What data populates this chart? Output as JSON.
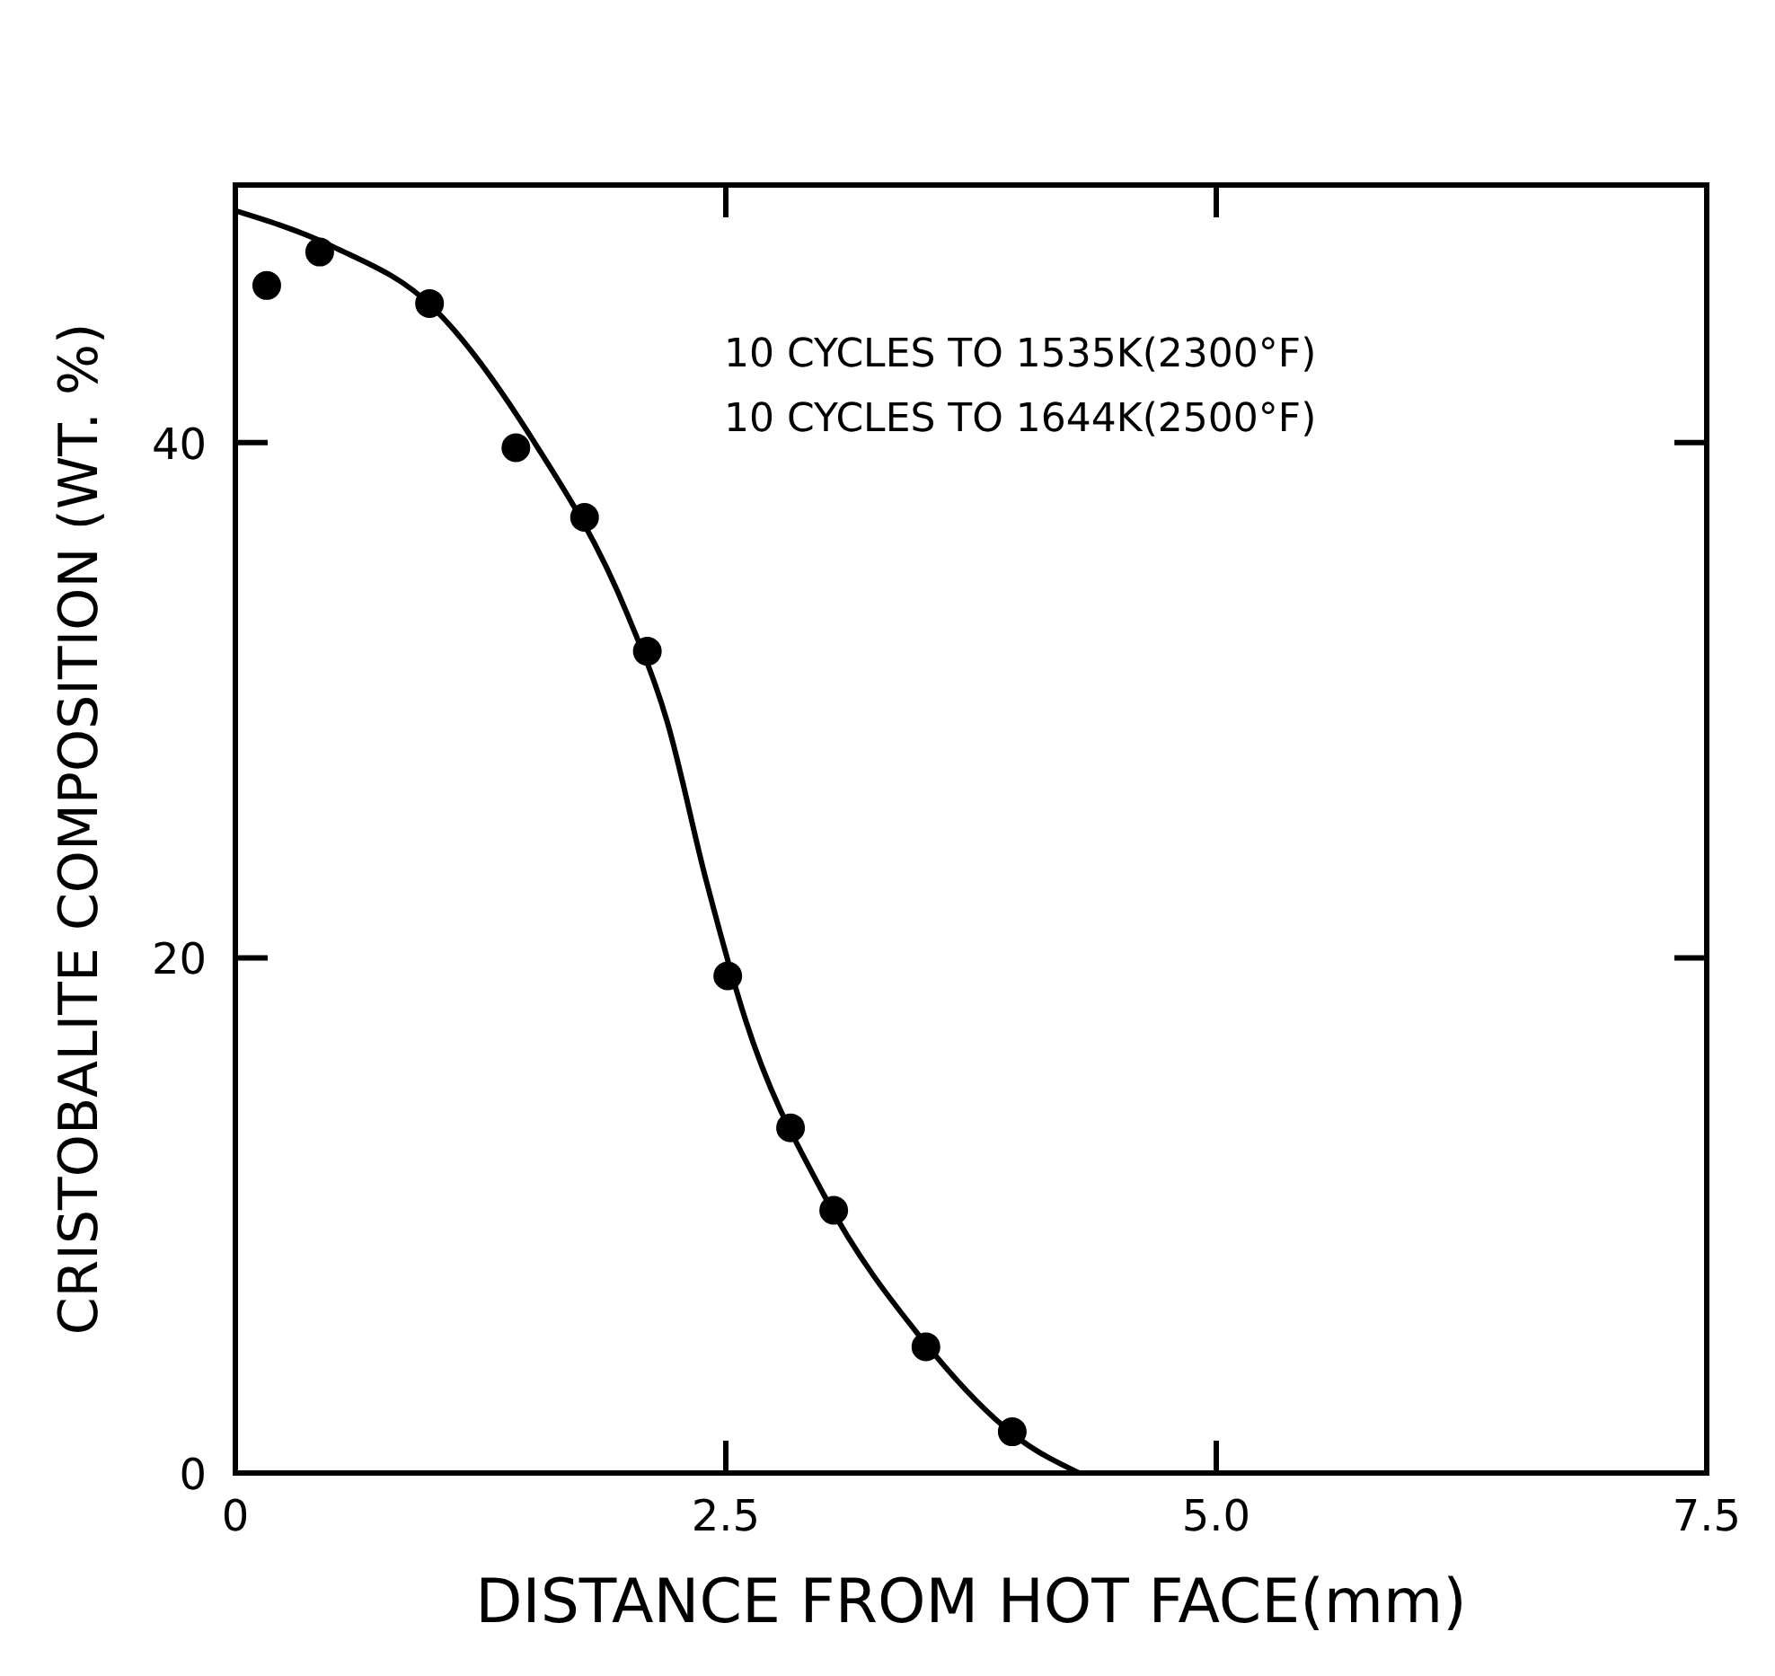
{
  "chart_data": {
    "type": "scatter",
    "xlabel": "DISTANCE FROM HOT FACE(mm)",
    "ylabel": "CRISTOBALITE COMPOSITION (WT. %)",
    "annotations": [
      "10 CYCLES TO 1535K(2300°F)",
      "10 CYCLES TO 1644K(2500°F)"
    ],
    "xlim": [
      0,
      7.5
    ],
    "ylim": [
      0,
      50
    ],
    "xticks": [
      0,
      {
        "value": 2.5,
        "label": "2.5"
      },
      {
        "value": 5,
        "label": "5.0"
      },
      {
        "value": 7.5,
        "label": "7.5"
      }
    ],
    "yticks": [
      0,
      20,
      40
    ],
    "grid": false,
    "series": [
      {
        "color": "#000000",
        "marker": "circle",
        "x": [
          0.16,
          0.43,
          0.99,
          1.43,
          1.78,
          2.1,
          2.51,
          2.83,
          3.05,
          3.52,
          3.96
        ],
        "values": [
          46.1,
          47.4,
          45.4,
          39.8,
          37.1,
          31.9,
          19.3,
          13.4,
          10.2,
          4.9,
          1.6
        ]
      },
      {
        "type": "line",
        "color": "#000000",
        "line_style": "solid",
        "x": [
          0,
          0.5,
          1,
          1.5,
          2,
          2.2,
          2.4,
          2.6,
          3,
          3.5,
          4,
          4.3
        ],
        "values": [
          49,
          47.6,
          45.3,
          40.3,
          33.3,
          29.2,
          23,
          17.6,
          10.8,
          5.2,
          1.3,
          0
        ]
      }
    ]
  }
}
